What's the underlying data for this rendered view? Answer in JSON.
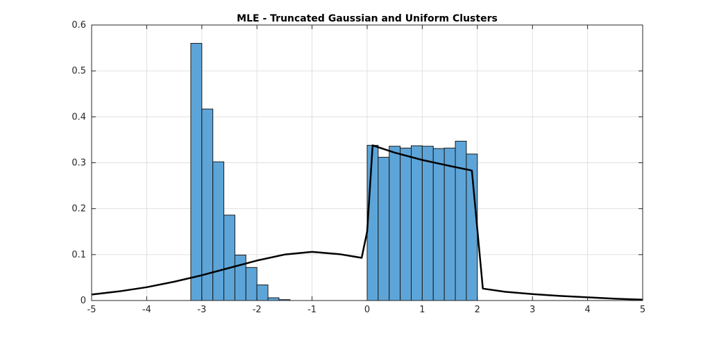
{
  "chart_data": {
    "type": "bar",
    "title": "MLE - Truncated Gaussian and Uniform Clusters",
    "xlabel": "",
    "ylabel": "",
    "xlim": [
      -5,
      5
    ],
    "ylim": [
      0,
      0.6
    ],
    "xticks": [
      -5,
      -4,
      -3,
      -2,
      -1,
      0,
      1,
      2,
      3,
      4,
      5
    ],
    "yticks": [
      0,
      0.1,
      0.2,
      0.3,
      0.4,
      0.5,
      0.6
    ],
    "grid": true,
    "legend": "none",
    "colors": {
      "bar_fill": "#5da5d8",
      "bar_edge": "#1a1a1a",
      "line": "#000000",
      "grid": "#e0e0e0",
      "axis": "#262626"
    },
    "histogram": {
      "bins": [
        {
          "x0": -3.2,
          "x1": -3.0,
          "value": 0.56
        },
        {
          "x0": -3.0,
          "x1": -2.8,
          "value": 0.417
        },
        {
          "x0": -2.8,
          "x1": -2.6,
          "value": 0.302
        },
        {
          "x0": -2.6,
          "x1": -2.4,
          "value": 0.186
        },
        {
          "x0": -2.4,
          "x1": -2.2,
          "value": 0.099
        },
        {
          "x0": -2.2,
          "x1": -2.0,
          "value": 0.072
        },
        {
          "x0": -2.0,
          "x1": -1.8,
          "value": 0.034
        },
        {
          "x0": -1.8,
          "x1": -1.6,
          "value": 0.006
        },
        {
          "x0": -1.6,
          "x1": -1.4,
          "value": 0.002
        },
        {
          "x0": 0.0,
          "x1": 0.2,
          "value": 0.338
        },
        {
          "x0": 0.2,
          "x1": 0.4,
          "value": 0.312
        },
        {
          "x0": 0.4,
          "x1": 0.6,
          "value": 0.336
        },
        {
          "x0": 0.6,
          "x1": 0.8,
          "value": 0.332
        },
        {
          "x0": 0.8,
          "x1": 1.0,
          "value": 0.337
        },
        {
          "x0": 1.0,
          "x1": 1.2,
          "value": 0.336
        },
        {
          "x0": 1.2,
          "x1": 1.4,
          "value": 0.331
        },
        {
          "x0": 1.4,
          "x1": 1.6,
          "value": 0.332
        },
        {
          "x0": 1.6,
          "x1": 1.8,
          "value": 0.347
        },
        {
          "x0": 1.8,
          "x1": 2.0,
          "value": 0.319
        }
      ]
    },
    "series": [
      {
        "type": "line",
        "x": [
          -5,
          -4.5,
          -4,
          -3.5,
          -3,
          -2.5,
          -2,
          -1.5,
          -1,
          -0.5,
          -0.1,
          0,
          0.1,
          0.5,
          1.0,
          1.5,
          1.9,
          2.1,
          2.5,
          3,
          3.5,
          4,
          4.5,
          5
        ],
        "y": [
          0.013,
          0.02,
          0.029,
          0.041,
          0.055,
          0.071,
          0.087,
          0.1,
          0.106,
          0.101,
          0.093,
          0.15,
          0.338,
          0.322,
          0.306,
          0.293,
          0.283,
          0.026,
          0.019,
          0.014,
          0.01,
          0.007,
          0.004,
          0.002
        ]
      }
    ]
  }
}
